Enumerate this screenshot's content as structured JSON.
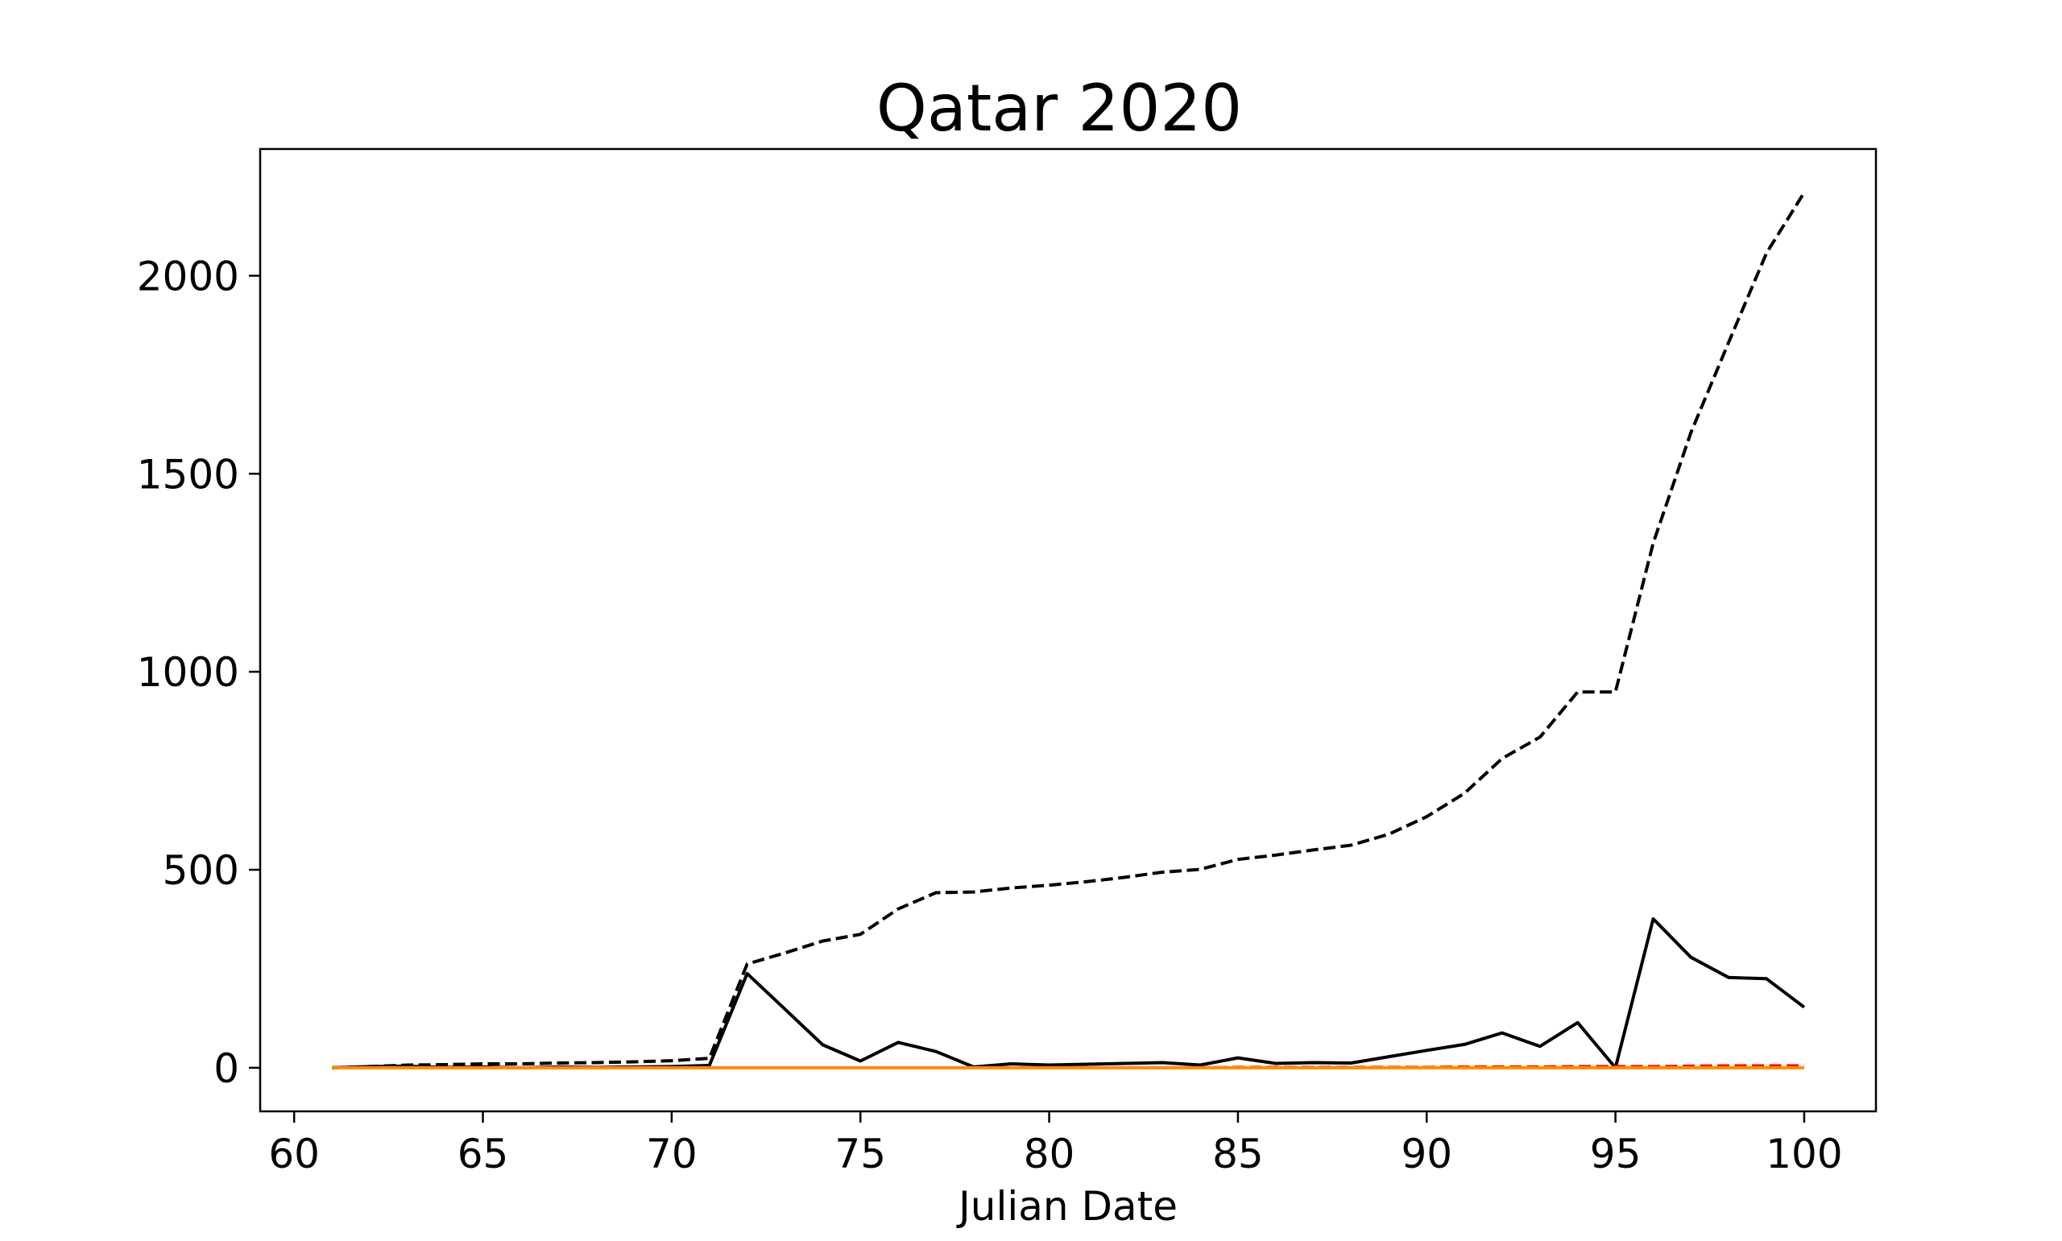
{
  "chart_data": {
    "type": "line",
    "title": "Qatar 2020",
    "xlabel": "Julian Date",
    "ylabel": "",
    "xlim": [
      59.1,
      101.9
    ],
    "ylim": [
      -110,
      2320
    ],
    "xticks": [
      60,
      65,
      70,
      75,
      80,
      85,
      90,
      95,
      100
    ],
    "xtick_labels": [
      "60",
      "65",
      "70",
      "75",
      "80",
      "85",
      "90",
      "95",
      "100"
    ],
    "yticks": [
      0,
      500,
      1000,
      1500,
      2000
    ],
    "ytick_labels": [
      "0",
      "500",
      "1000",
      "1500",
      "2000"
    ],
    "grid": false,
    "x": [
      61,
      62,
      63,
      64,
      65,
      66,
      67,
      68,
      69,
      70,
      71,
      72,
      73,
      74,
      75,
      76,
      77,
      78,
      79,
      80,
      81,
      82,
      83,
      84,
      85,
      86,
      87,
      88,
      89,
      90,
      91,
      92,
      93,
      94,
      95,
      96,
      97,
      98,
      99,
      100
    ],
    "series": [
      {
        "color": "#000000",
        "style": "dashed",
        "values": [
          0,
          3,
          7,
          8,
          10,
          10,
          12,
          13,
          15,
          18,
          24,
          262,
          290,
          320,
          337,
          401,
          442,
          444,
          454,
          461,
          470,
          481,
          494,
          501,
          526,
          537,
          550,
          562,
          590,
          634,
          693,
          781,
          835,
          949,
          949,
          1325,
          1604,
          1832,
          2057,
          2210
        ]
      },
      {
        "color": "#000000",
        "style": "solid",
        "values": [
          0,
          3,
          4,
          1,
          2,
          0,
          2,
          1,
          2,
          3,
          6,
          238,
          148,
          58,
          17,
          64,
          41,
          2,
          10,
          7,
          9,
          11,
          13,
          7,
          25,
          11,
          13,
          12,
          28,
          44,
          59,
          88,
          54,
          114,
          0,
          376,
          279,
          228,
          225,
          153
        ]
      },
      {
        "color": "#ff0000",
        "style": "dashed",
        "values": [
          0,
          0,
          0,
          0,
          0,
          0,
          0,
          0,
          0,
          0,
          0,
          0,
          0,
          0,
          0,
          0,
          0,
          0,
          0,
          1,
          1,
          1,
          1,
          1,
          2,
          2,
          2,
          2,
          2,
          2,
          3,
          3,
          3,
          4,
          4,
          4,
          5,
          6,
          6,
          6
        ]
      },
      {
        "color": "#ff8c00",
        "style": "solid",
        "values": [
          0,
          0,
          0,
          0,
          0,
          0,
          0,
          0,
          0,
          0,
          0,
          0,
          0,
          0,
          0,
          0,
          0,
          0,
          0,
          0,
          0,
          0,
          0,
          0,
          0,
          0,
          0,
          0,
          0,
          0,
          0,
          0,
          0,
          0,
          0,
          0,
          0,
          0,
          0,
          0
        ]
      }
    ]
  }
}
